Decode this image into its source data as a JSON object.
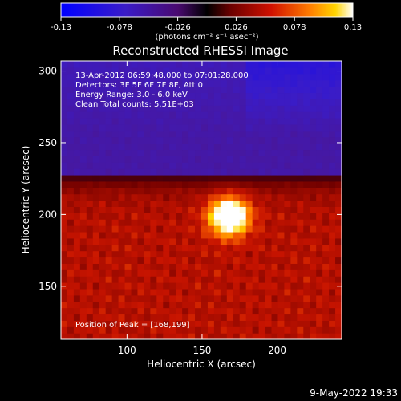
{
  "chart_data": {
    "type": "heatmap",
    "title": "Reconstructed RHESSI Image",
    "xlabel": "Heliocentric X (arcsec)",
    "ylabel": "Heliocentric Y (arcsec)",
    "xlim": [
      56,
      243
    ],
    "ylim": [
      113,
      307
    ],
    "x_ticks": [
      100,
      150,
      200
    ],
    "y_ticks": [
      150,
      200,
      250,
      300
    ],
    "colorbar": {
      "min": -0.13,
      "max": 0.13,
      "ticks": [
        "-0.13",
        "-0.078",
        "-0.026",
        "0.026",
        "0.078",
        "0.13"
      ],
      "unit_label": "(photons cm⁻² s⁻¹ asec⁻²)"
    },
    "annotations": [
      "13-Apr-2012 06:59:48.000 to 07:01:28.000",
      "Detectors: 3F 5F 6F 7F 8F, Att 0",
      "Energy Range: 3.0 - 6.0 keV",
      "Clean    Total counts: 5.51E+03"
    ],
    "peak_label": "Position of Peak = [168,199]",
    "peak": {
      "x": 168,
      "y": 199
    },
    "footer_date": "9-May-2022 19:33",
    "colors": {
      "negative": "#2a10ff",
      "zero": "#1a0022",
      "positive_low": "#b01010",
      "positive_mid": "#ff6a00",
      "positive_high": "#ffffd8"
    }
  }
}
